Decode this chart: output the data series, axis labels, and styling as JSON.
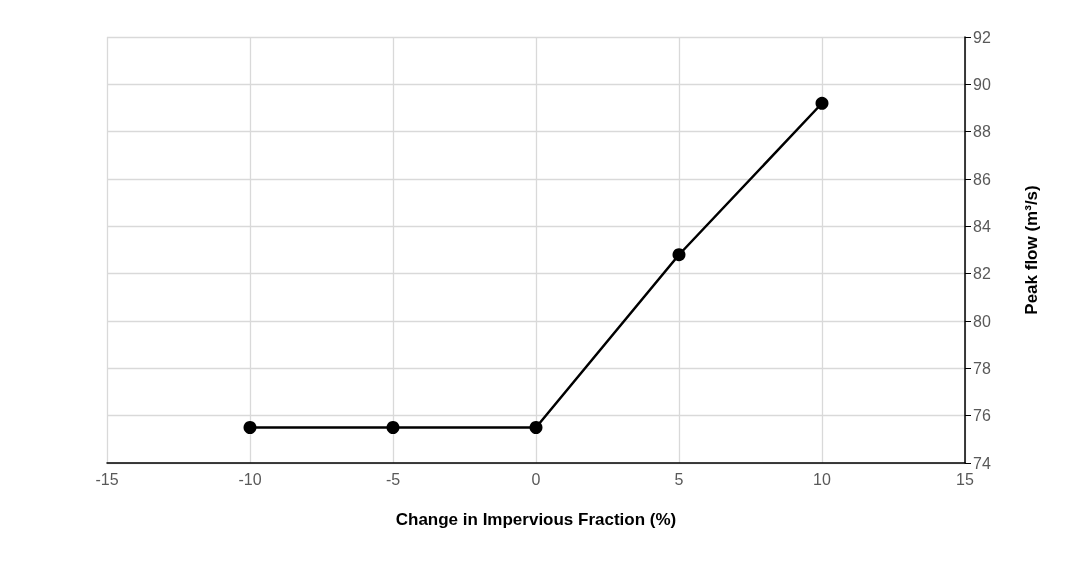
{
  "chart_data": {
    "type": "line",
    "xlabel": "Change in Impervious Fraction (%)",
    "ylabel": "Peak flow (m³/s)",
    "x": [
      -10,
      -5,
      0,
      5,
      10
    ],
    "series": [
      {
        "color": "#000000",
        "values": [
          75.5,
          75.5,
          75.5,
          82.8,
          89.2
        ]
      }
    ],
    "xlim": [
      -15,
      15
    ],
    "xticks": [
      -15,
      -10,
      -5,
      0,
      5,
      10,
      15
    ],
    "ylim": [
      74,
      92
    ],
    "yticks": [
      74,
      76,
      78,
      80,
      82,
      84,
      86,
      88,
      90,
      92
    ],
    "grid": true,
    "marker": "circle",
    "line_style": "solid"
  }
}
